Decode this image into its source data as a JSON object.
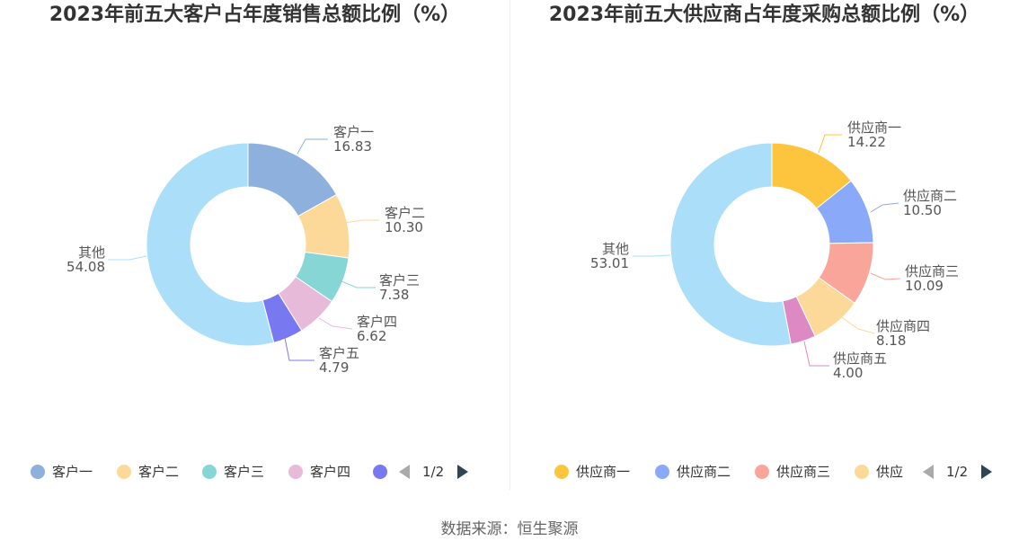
{
  "source": "数据来源：恒生聚源",
  "chart_data": [
    {
      "type": "pie",
      "title": "2023年前五大客户占年度销售总额比例（%）",
      "slices": [
        {
          "name": "客户一",
          "value": 16.83,
          "label_value": "16.83",
          "color": "#8eb0dd"
        },
        {
          "name": "客户二",
          "value": 10.3,
          "label_value": "10.30",
          "color": "#fdd999"
        },
        {
          "name": "客户三",
          "value": 7.38,
          "label_value": "7.38",
          "color": "#86d6d6"
        },
        {
          "name": "客户四",
          "value": 6.62,
          "label_value": "6.62",
          "color": "#e8bada"
        },
        {
          "name": "客户五",
          "value": 4.79,
          "label_value": "4.79",
          "color": "#7879f0"
        },
        {
          "name": "其他",
          "value": 54.08,
          "label_value": "54.08",
          "color": "#abdff9"
        }
      ],
      "legend": {
        "items": [
          {
            "label": "客户一",
            "color": "#8eb0dd"
          },
          {
            "label": "客户二",
            "color": "#fdd999"
          },
          {
            "label": "客户三",
            "color": "#86d6d6"
          },
          {
            "label": "客户四",
            "color": "#e8bada"
          },
          {
            "label": "",
            "color": "#7879f0"
          }
        ],
        "page": "1/2"
      }
    },
    {
      "type": "pie",
      "title": "2023年前五大供应商占年度采购总额比例（%）",
      "slices": [
        {
          "name": "供应商一",
          "value": 14.22,
          "label_value": "14.22",
          "color": "#fdc43d"
        },
        {
          "name": "供应商二",
          "value": 10.5,
          "label_value": "10.50",
          "color": "#8aa9f8"
        },
        {
          "name": "供应商三",
          "value": 10.09,
          "label_value": "10.09",
          "color": "#f9a59a"
        },
        {
          "name": "供应商四",
          "value": 8.18,
          "label_value": "8.18",
          "color": "#fdd999"
        },
        {
          "name": "供应商五",
          "value": 4.0,
          "label_value": "4.00",
          "color": "#dd8ac4"
        },
        {
          "name": "其他",
          "value": 53.01,
          "label_value": "53.01",
          "color": "#abdff9"
        }
      ],
      "legend": {
        "items": [
          {
            "label": "供应商一",
            "color": "#fdc43d"
          },
          {
            "label": "供应商二",
            "color": "#8aa9f8"
          },
          {
            "label": "供应商三",
            "color": "#f9a59a"
          },
          {
            "label": "供应",
            "color": "#fdd999"
          }
        ],
        "page": "1/2"
      }
    }
  ]
}
